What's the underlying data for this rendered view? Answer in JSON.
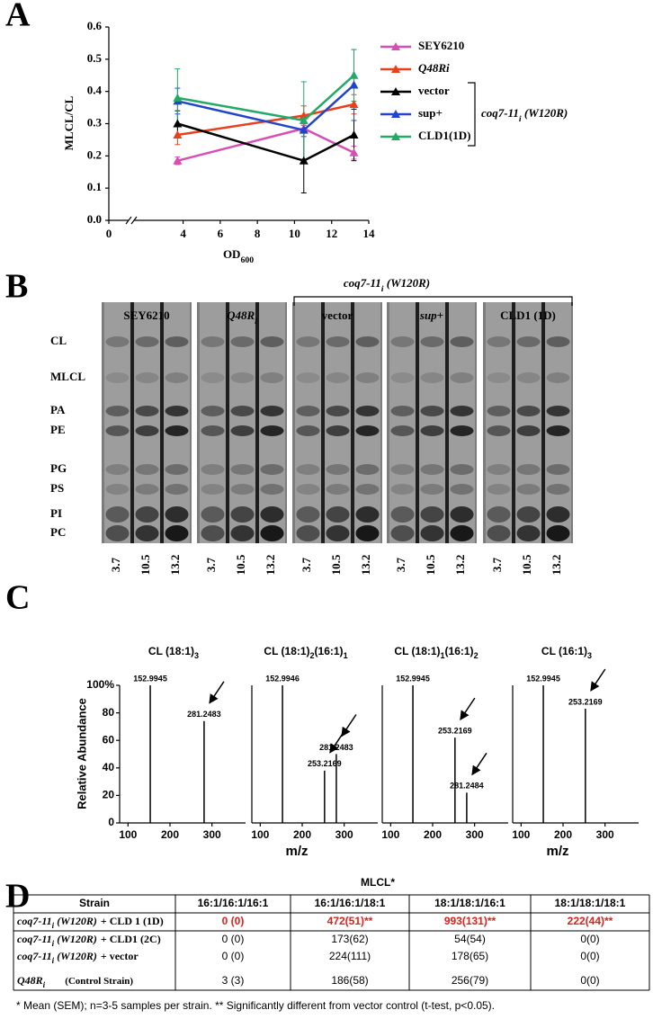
{
  "panels": {
    "a": "A",
    "b": "B",
    "c": "C",
    "d": "D"
  },
  "chart_data": [
    {
      "type": "line",
      "y_label": "MLCL/CL",
      "x_label": [
        "OD",
        "600"
      ],
      "x": [
        3.7,
        10.5,
        13.2
      ],
      "xlim": [
        0,
        14
      ],
      "xticks": [
        0,
        4,
        6,
        8,
        10,
        12,
        14
      ],
      "ylim": [
        0,
        0.6
      ],
      "yticks": [
        {
          "value": 0,
          "label": "0.0"
        },
        0.1,
        0.2,
        0.3,
        0.4,
        0.5,
        0.6
      ],
      "series": [
        {
          "name": "SEY6210",
          "color": "#d84fb4",
          "values": [
            0.185,
            0.285,
            0.21
          ],
          "errors": [
            0.012,
            0.01,
            0.02
          ]
        },
        {
          "name": "Q48Ri",
          "color": "#e8401c",
          "italic": true,
          "values": [
            0.265,
            0.325,
            0.36
          ],
          "errors": [
            0.03,
            0.03,
            0.03
          ]
        },
        {
          "name": "vector",
          "color": "#000000",
          "values": [
            0.3,
            0.185,
            0.265
          ],
          "errors": [
            0.04,
            0.1,
            0.08
          ]
        },
        {
          "name": "sup+",
          "color": "#2244cc",
          "values": [
            0.37,
            0.28,
            0.42
          ],
          "errors": [
            0.04,
            0.02,
            0.11
          ]
        },
        {
          "name": "CLD1(1D)",
          "color": "#22aa66",
          "values": [
            0.38,
            0.31,
            0.45
          ],
          "errors": [
            0.09,
            0.12,
            0.08
          ]
        }
      ],
      "group_label": [
        "coq7-11",
        "i",
        " (W120R)"
      ]
    },
    {
      "type": "spectrum",
      "title": [
        "CL (18:1)",
        "3"
      ],
      "y_label": "Relative Abundance",
      "x": [
        152.9945,
        281.2483
      ],
      "values": [
        100,
        74
      ],
      "xlim": [
        80,
        380
      ],
      "xticks": [
        100,
        200,
        300
      ],
      "ylim": [
        0,
        100
      ],
      "yticks": [
        0,
        20,
        40,
        60,
        80,
        {
          "value": 100,
          "label": "100%"
        }
      ]
    },
    {
      "type": "spectrum",
      "title": [
        "CL (18:1)",
        "2",
        "(16:1)",
        "1"
      ],
      "x_label": "m/z",
      "x": [
        152.9946,
        253.2169,
        281.2483
      ],
      "values": [
        100,
        38,
        50
      ],
      "xlim": [
        80,
        380
      ],
      "xticks": [
        100,
        200,
        300
      ],
      "ylim": [
        0,
        100
      ]
    },
    {
      "type": "spectrum",
      "title": [
        "CL (18:1)",
        "1",
        "(16:1)",
        "2"
      ],
      "x": [
        152.9945,
        253.2169,
        281.2484
      ],
      "values": [
        100,
        62,
        22
      ],
      "xlim": [
        80,
        380
      ],
      "xticks": [
        100,
        200,
        300
      ],
      "ylim": [
        0,
        100
      ]
    },
    {
      "type": "spectrum",
      "title": [
        "CL (16:1)",
        "3"
      ],
      "x_label": "m/z",
      "x": [
        152.9945,
        253.2169
      ],
      "values": [
        100,
        83
      ],
      "xlim": [
        80,
        380
      ],
      "xticks": [
        100,
        200,
        300
      ],
      "ylim": [
        0,
        100
      ]
    }
  ],
  "gel": {
    "group_labels": [
      [
        "SEY6210"
      ],
      [
        "Q48R",
        "i"
      ],
      [
        "vector"
      ],
      [
        "sup+"
      ],
      [
        "CLD1 (1D)"
      ]
    ],
    "bracket_label": [
      "coq7-11",
      "i",
      " (W120R)"
    ],
    "rows": [
      "CL",
      "MLCL",
      "PA",
      "PE",
      "PG",
      "PS",
      "PI",
      "PC"
    ],
    "lanes": [
      [
        "3.7",
        "10.5",
        "13.2"
      ],
      [
        "3.7",
        "10.5",
        "13.2"
      ],
      [
        "3.7",
        "10.5",
        "13.2"
      ],
      [
        "3.7",
        "10.5",
        "13.2"
      ],
      [
        "3.7",
        "10.5",
        "13.2"
      ]
    ]
  },
  "table": {
    "title": "MLCL*",
    "header": [
      "Strain",
      "16:1/16:1/16:1",
      "16:1/16:1/18:1",
      "18:1/18:1/16:1",
      "18:1/18:1/18:1"
    ],
    "rows": [
      {
        "strain": [
          "coq7-11",
          "i",
          " (W120R)"
        ],
        "rest": "+ CLD 1 (1D)",
        "highlight": "#e0201b",
        "cells": [
          "0 (0)",
          "472(51)**",
          "993(131)**",
          "222(44)**"
        ]
      },
      {
        "strain": [
          "coq7-11",
          "i",
          " (W120R)"
        ],
        "rest": "+ CLD1 (2C)",
        "cells": [
          "0 (0)",
          "173(62)",
          "54(54)",
          "0(0)"
        ]
      },
      {
        "strain": [
          "coq7-11",
          "i",
          " (W120R)"
        ],
        "rest": "+ vector",
        "cells": [
          "0 (0)",
          "224(111)",
          "178(65)",
          "0(0)"
        ]
      },
      {
        "strain": [
          "Q48R",
          "i"
        ],
        "rest": "(Control Strain)",
        "cells": [
          "3 (3)",
          "186(58)",
          "256(79)",
          "0(0)"
        ]
      }
    ],
    "footnote": "* Mean (SEM); n=3-5 samples per strain. ** Significantly different from vector control (t-test, p<0.05)."
  }
}
